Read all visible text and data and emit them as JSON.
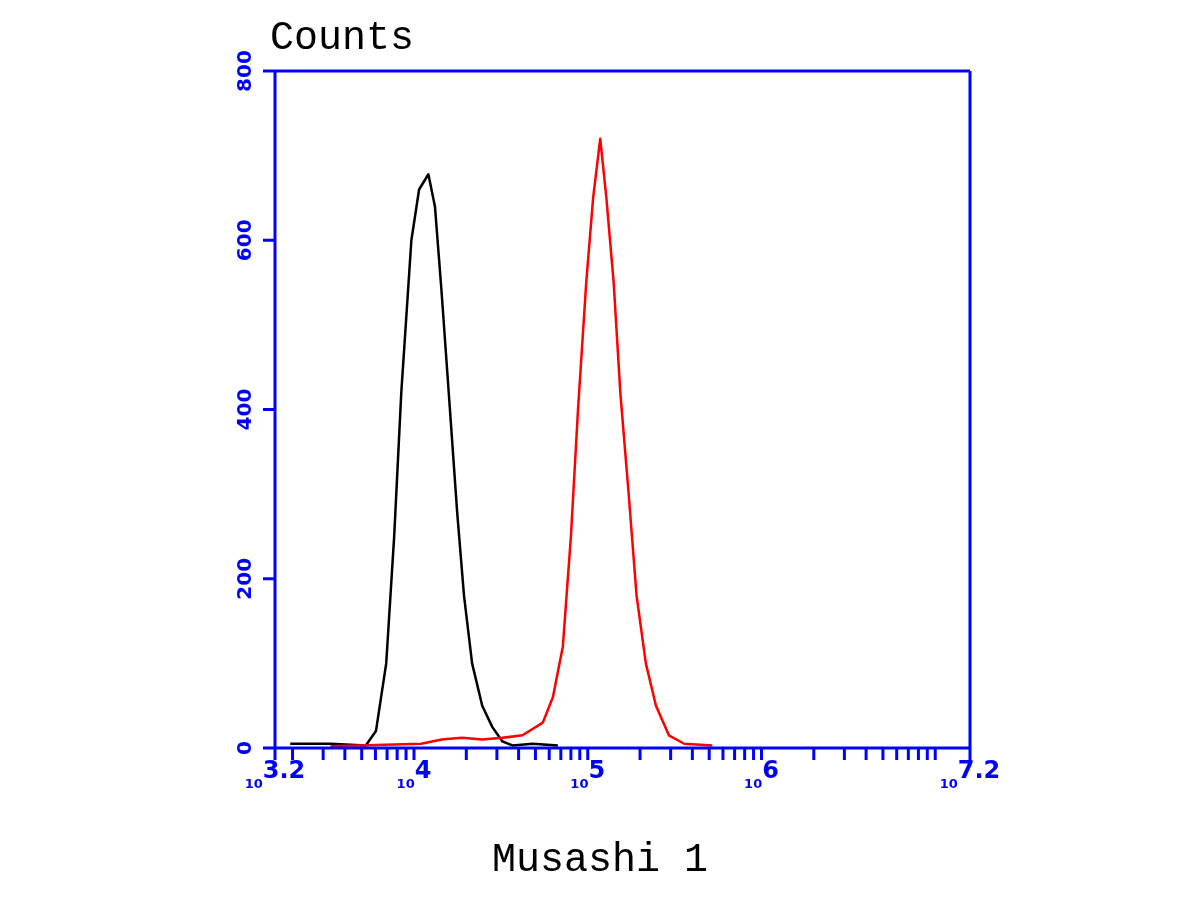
{
  "chart_data": {
    "type": "line",
    "title": "Counts",
    "xlabel": "Musashi 1",
    "log": "x",
    "legend": false,
    "marker": "none",
    "line_style": "solid",
    "xlim": [
      1585,
      15850000
    ],
    "ylim": [
      0,
      800
    ],
    "yticks": [
      0,
      200,
      400,
      600,
      800
    ],
    "xticks": [
      {
        "value": 1585,
        "label": "10$^{3.2}$"
      },
      {
        "value": 2000,
        "label": null
      },
      {
        "value": 3000,
        "label": null
      },
      {
        "value": 4000,
        "label": null
      },
      {
        "value": 5000,
        "label": null
      },
      {
        "value": 6000,
        "label": null
      },
      {
        "value": 7000,
        "label": null
      },
      {
        "value": 8000,
        "label": null
      },
      {
        "value": 9000,
        "label": null
      },
      {
        "value": 10000,
        "label": "10$^{4}$"
      },
      {
        "value": 20000,
        "label": null
      },
      {
        "value": 30000,
        "label": null
      },
      {
        "value": 40000,
        "label": null
      },
      {
        "value": 50000,
        "label": null
      },
      {
        "value": 60000,
        "label": null
      },
      {
        "value": 70000,
        "label": null
      },
      {
        "value": 80000,
        "label": null
      },
      {
        "value": 90000,
        "label": null
      },
      {
        "value": 100000,
        "label": "10$^{5}$"
      },
      {
        "value": 200000,
        "label": null
      },
      {
        "value": 300000,
        "label": null
      },
      {
        "value": 400000,
        "label": null
      },
      {
        "value": 500000,
        "label": null
      },
      {
        "value": 600000,
        "label": null
      },
      {
        "value": 700000,
        "label": null
      },
      {
        "value": 800000,
        "label": null
      },
      {
        "value": 900000,
        "label": null
      },
      {
        "value": 1000000,
        "label": "10$^{6}$"
      },
      {
        "value": 2000000,
        "label": null
      },
      {
        "value": 3000000,
        "label": null
      },
      {
        "value": 4000000,
        "label": null
      },
      {
        "value": 5000000,
        "label": null
      },
      {
        "value": 6000000,
        "label": null
      },
      {
        "value": 7000000,
        "label": null
      },
      {
        "value": 8000000,
        "label": null
      },
      {
        "value": 9000000,
        "label": null
      },
      {
        "value": 10000000,
        "label": null
      },
      {
        "value": 15850000,
        "label": "10$^{7.2}$"
      }
    ],
    "series": [
      {
        "color": "#000000",
        "x": [
          1940,
          3310,
          5280,
          6040,
          6920,
          7690,
          8450,
          9660,
          10700,
          12100,
          13200,
          14400,
          16100,
          17700,
          19400,
          21600,
          24700,
          28200,
          32200,
          36800,
          48200,
          67300
        ],
        "values": [
          5,
          5,
          3,
          20,
          100,
          250,
          420,
          600,
          660,
          678,
          640,
          540,
          400,
          280,
          180,
          100,
          50,
          25,
          8,
          3,
          5,
          3
        ]
      },
      {
        "color": "#ff0000",
        "x": [
          3310,
          11000,
          14400,
          18900,
          24700,
          32200,
          42100,
          55100,
          63000,
          71900,
          80000,
          87900,
          98000,
          107400,
          118000,
          128000,
          141000,
          154000,
          172000,
          191000,
          216000,
          247000,
          293000,
          359000,
          521000
        ],
        "values": [
          2,
          5,
          10,
          12,
          10,
          12,
          15,
          30,
          60,
          120,
          250,
          400,
          550,
          650,
          720,
          650,
          550,
          420,
          300,
          180,
          100,
          50,
          15,
          5,
          3
        ]
      }
    ]
  }
}
